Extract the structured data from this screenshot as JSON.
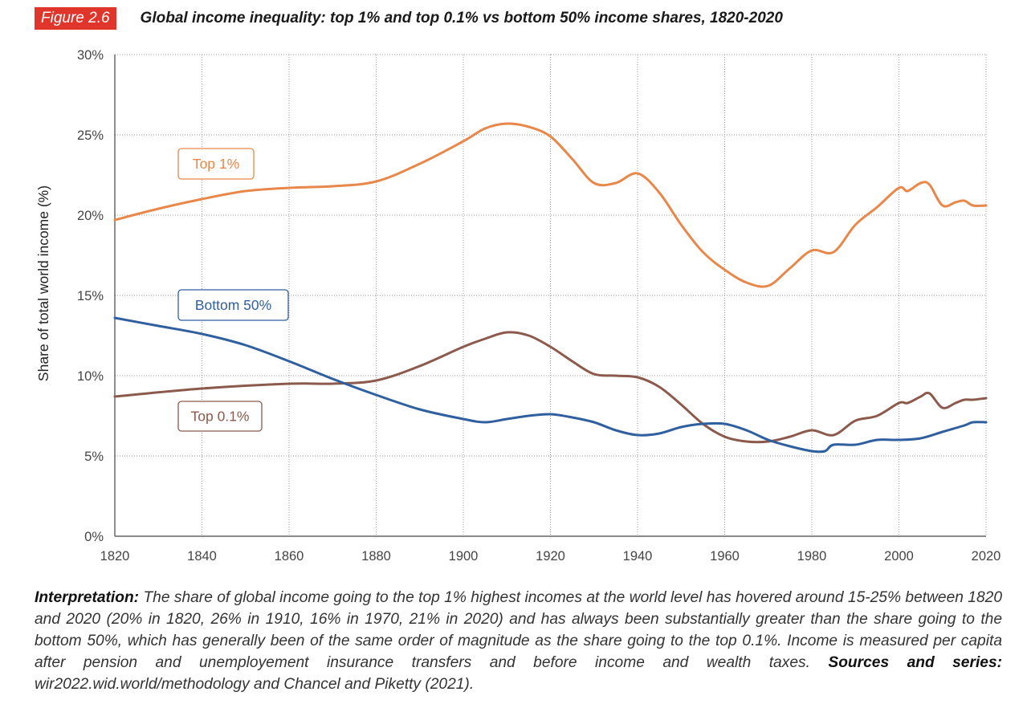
{
  "figure": {
    "number": "Figure 2.6",
    "title": "Global income inequality: top 1% and top 0.1% vs bottom 50% income shares, 1820-2020"
  },
  "note": {
    "interp_label": "Interpretation:",
    "interp_text": "The share of global income going to the top 1% highest incomes at the world level has hovered around 15-25% between 1820 and 2020 (20% in 1820, 26% in 1910, 16% in 1970, 21% in 2020) and has always been substantially greater than the share going to the bottom 50%, which has generally been of the same order of magnitude as the share going to the top 0.1%. Income is measured per capita after pension and unemployement insurance transfers and before income and wealth taxes.",
    "sources_label": "Sources and series:",
    "sources_text": "wir2022.wid.world/methodology and Chancel and Piketty (2021)."
  },
  "chart_data": {
    "type": "line",
    "title": "Global income inequality: top 1% and top 0.1% vs bottom 50% income shares, 1820-2020",
    "xlabel": "",
    "ylabel": "Share of total world income (%)",
    "xlim": [
      1820,
      2020
    ],
    "ylim": [
      0,
      30
    ],
    "x_ticks": [
      "1820",
      "1840",
      "1860",
      "1880",
      "1900",
      "1920",
      "1940",
      "1960",
      "1980",
      "2000",
      "2020"
    ],
    "y_ticks": [
      "0%",
      "5%",
      "10%",
      "15%",
      "20%",
      "25%",
      "30%"
    ],
    "grid": true,
    "colors": {
      "top1": "#e8874a",
      "top01": "#8c5a4c",
      "bottom50": "#2f5f9e",
      "grid": "#9a9a9a",
      "axis": "#444444"
    },
    "series": [
      {
        "name": "Top 1%",
        "key": "top1",
        "x": [
          1820,
          1830,
          1840,
          1850,
          1860,
          1870,
          1880,
          1890,
          1900,
          1905,
          1910,
          1915,
          1920,
          1925,
          1930,
          1935,
          1940,
          1945,
          1950,
          1955,
          1960,
          1965,
          1970,
          1975,
          1980,
          1985,
          1990,
          1995,
          2000,
          2002,
          2005,
          2007,
          2010,
          2013,
          2015,
          2017,
          2020
        ],
        "y": [
          19.7,
          20.4,
          21.0,
          21.5,
          21.7,
          21.8,
          22.1,
          23.2,
          24.6,
          25.4,
          25.7,
          25.5,
          24.9,
          23.5,
          22.0,
          22.0,
          22.6,
          21.4,
          19.4,
          17.7,
          16.6,
          15.8,
          15.6,
          16.7,
          17.8,
          17.7,
          19.4,
          20.5,
          21.7,
          21.5,
          22.0,
          21.9,
          20.6,
          20.8,
          20.9,
          20.6,
          20.6
        ]
      },
      {
        "name": "Top 0.1%",
        "key": "top01",
        "x": [
          1820,
          1840,
          1860,
          1870,
          1880,
          1890,
          1900,
          1905,
          1910,
          1915,
          1920,
          1925,
          1930,
          1935,
          1940,
          1945,
          1950,
          1955,
          1960,
          1965,
          1970,
          1975,
          1980,
          1985,
          1990,
          1995,
          2000,
          2002,
          2005,
          2007,
          2010,
          2013,
          2015,
          2017,
          2020
        ],
        "y": [
          8.7,
          9.2,
          9.5,
          9.5,
          9.7,
          10.6,
          11.8,
          12.3,
          12.7,
          12.5,
          11.8,
          10.9,
          10.1,
          10.0,
          9.9,
          9.3,
          8.2,
          7.0,
          6.2,
          5.9,
          5.9,
          6.2,
          6.6,
          6.3,
          7.2,
          7.5,
          8.3,
          8.3,
          8.7,
          8.9,
          8.0,
          8.3,
          8.5,
          8.5,
          8.6
        ]
      },
      {
        "name": "Bottom 50%",
        "key": "bottom50",
        "x": [
          1820,
          1830,
          1840,
          1850,
          1860,
          1870,
          1880,
          1890,
          1900,
          1905,
          1910,
          1915,
          1920,
          1925,
          1930,
          1935,
          1940,
          1945,
          1950,
          1955,
          1960,
          1965,
          1970,
          1975,
          1980,
          1983,
          1985,
          1990,
          1995,
          2000,
          2005,
          2010,
          2015,
          2017,
          2020
        ],
        "y": [
          13.6,
          13.1,
          12.6,
          11.9,
          10.9,
          9.8,
          8.8,
          7.9,
          7.3,
          7.1,
          7.3,
          7.5,
          7.6,
          7.4,
          7.1,
          6.6,
          6.3,
          6.4,
          6.8,
          7.0,
          7.0,
          6.6,
          6.0,
          5.6,
          5.3,
          5.3,
          5.7,
          5.7,
          6.0,
          6.0,
          6.1,
          6.5,
          6.9,
          7.1,
          7.1
        ]
      }
    ],
    "labels": {
      "top1": "Top 1%",
      "bottom50": "Bottom 50%",
      "top01": "Top 0.1%"
    }
  }
}
